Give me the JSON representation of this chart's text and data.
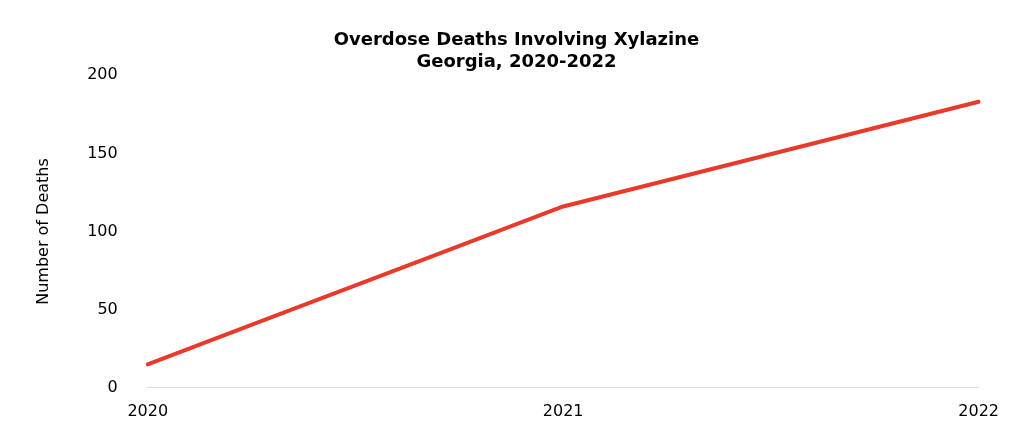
{
  "chart_data": {
    "type": "line",
    "title": "Overdose Deaths Involving Xylazine\nGeorgia, 2020-2022",
    "ylabel": "Number of Deaths",
    "categories": [
      "2020",
      "2021",
      "2022"
    ],
    "series": [
      {
        "color": "#e8392b",
        "values": [
          15,
          116,
          183
        ]
      }
    ],
    "ylim": [
      0,
      200
    ],
    "yticks": [
      0,
      50,
      100,
      150,
      200
    ],
    "grid": false,
    "legend": false,
    "marker": "none",
    "line_style": "solid"
  }
}
